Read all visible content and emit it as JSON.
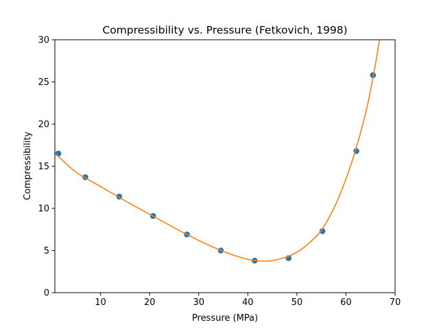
{
  "chart_data": {
    "type": "scatter",
    "title": "Compressibility vs. Pressure (Fetkovich, 1998)",
    "xlabel": "Pressure (MPa)",
    "ylabel": "Compressibility",
    "xlim": [
      0.7,
      70
    ],
    "ylim": [
      0,
      30
    ],
    "xticks": [
      10,
      20,
      30,
      40,
      50,
      60,
      70
    ],
    "yticks": [
      0,
      5,
      10,
      15,
      20,
      25,
      30
    ],
    "xtick_labels": [
      "10",
      "20",
      "30",
      "40",
      "50",
      "60",
      "70"
    ],
    "ytick_labels": [
      "0",
      "5",
      "10",
      "15",
      "20",
      "25",
      "30"
    ],
    "grid": false,
    "legend": "none",
    "series": [
      {
        "kind": "scatter",
        "color": "#1f77b4",
        "x": [
          1.4,
          6.9,
          13.8,
          20.7,
          27.6,
          34.5,
          41.4,
          48.3,
          55.2,
          62.1,
          65.5
        ],
        "y": [
          16.5,
          13.7,
          11.4,
          9.1,
          6.9,
          5.0,
          3.8,
          4.1,
          7.3,
          16.8,
          25.8
        ]
      },
      {
        "kind": "line",
        "color": "#ff7f0e",
        "x": [
          1.0,
          5,
          10,
          15,
          20,
          25,
          30,
          35,
          40,
          43,
          45,
          48,
          50,
          52,
          55,
          58,
          60,
          62,
          64,
          65,
          66,
          67
        ],
        "y": [
          16.4,
          14.3,
          12.6,
          10.9,
          9.3,
          7.7,
          6.2,
          4.9,
          3.95,
          3.75,
          3.8,
          4.25,
          4.8,
          5.65,
          7.4,
          10.6,
          13.5,
          17.0,
          21.3,
          24.0,
          27.1,
          30.6
        ]
      }
    ]
  }
}
